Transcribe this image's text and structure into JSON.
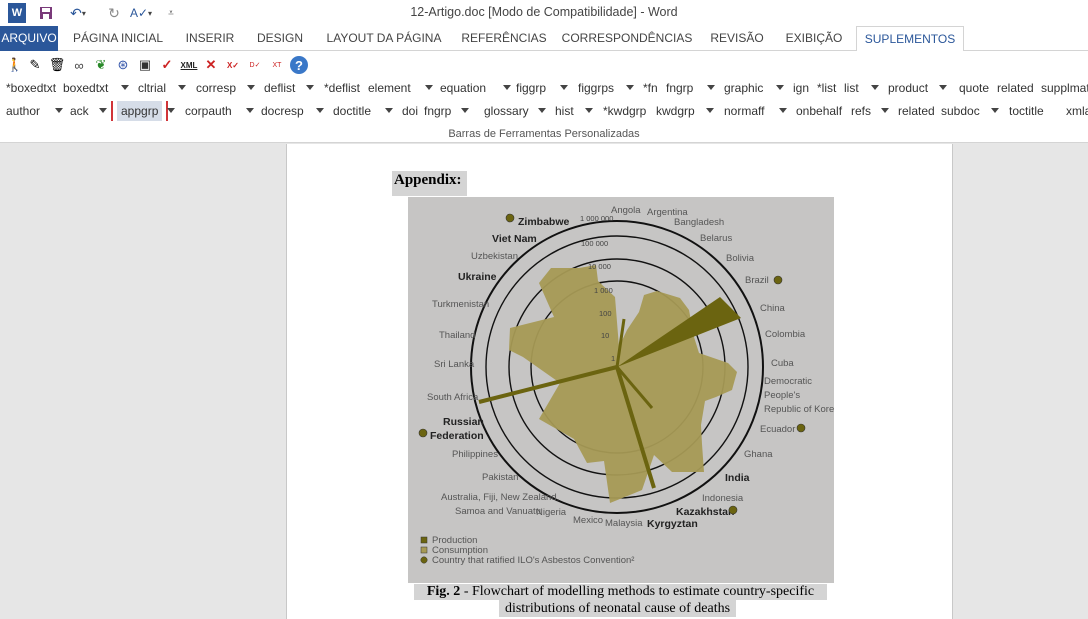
{
  "window": {
    "title": "12-Artigo.doc [Modo de Compatibilidade] - Word"
  },
  "quick_access": {
    "icons": [
      "word-icon",
      "save-icon",
      "undo-icon",
      "redo-icon",
      "spelling-icon",
      "customize-icon"
    ]
  },
  "tabs": [
    {
      "label": "ARQUIVO"
    },
    {
      "label": "PÁGINA INICIAL"
    },
    {
      "label": "INSERIR"
    },
    {
      "label": "DESIGN"
    },
    {
      "label": "LAYOUT DA PÁGINA"
    },
    {
      "label": "REFERÊNCIAS"
    },
    {
      "label": "CORRESPONDÊNCIAS"
    },
    {
      "label": "REVISÃO"
    },
    {
      "label": "EXIBIÇÃO"
    },
    {
      "label": "SUPLEMENTOS"
    }
  ],
  "ribbon": {
    "tool_icons": [
      "person-icon",
      "pen-icon",
      "trash-icon",
      "link-icon",
      "tree-icon",
      "globe-icon",
      "save-disk-icon",
      "check-icon",
      "xml-icon",
      "delete-icon",
      "xml-validate-icon",
      "data-icon",
      "xml-text-icon",
      "help-icon"
    ],
    "row1": [
      "*boxedtxt",
      "boxedtxt",
      "cltrial",
      "corresp",
      "deflist",
      "*deflist",
      "element",
      "equation",
      "figgrp",
      "figgrps",
      "*fn",
      "fngrp",
      "graphic",
      "ign",
      "*list",
      "list",
      "product",
      "quote",
      "related",
      "supplmat"
    ],
    "row2": [
      "author",
      "ack",
      "appgrp",
      "corpauth",
      "docresp",
      "doctitle",
      "doi",
      "fngrp",
      "glossary",
      "hist",
      "*kwdgrp",
      "kwdgrp",
      "normaff",
      "onbehalf",
      "refs",
      "related",
      "subdoc",
      "toctitle",
      "xmlabstr"
    ],
    "group_label": "Barras de Ferramentas Personalizadas",
    "highlight_color": "#d13438"
  },
  "document": {
    "heading": "Appendix:",
    "caption_bold": "Fig. 2",
    "caption_rest": " - Flowchart of modelling methods to estimate country-specific",
    "caption_line2": "distributions of neonatal cause of deaths"
  },
  "figure": {
    "ring_labels": [
      "1",
      "10",
      "100",
      "1 000",
      "10 000",
      "100 000",
      "1 000 000"
    ],
    "countries": [
      {
        "name": "Angola",
        "bold": false
      },
      {
        "name": "Argentina",
        "bold": false
      },
      {
        "name": "Bangladesh",
        "bold": false
      },
      {
        "name": "Belarus",
        "bold": false
      },
      {
        "name": "Bolivia",
        "bold": false
      },
      {
        "name": "Brazil",
        "bold": false
      },
      {
        "name": "China",
        "bold": false
      },
      {
        "name": "Colombia",
        "bold": false
      },
      {
        "name": "Cuba",
        "bold": false
      },
      {
        "name": "Democratic",
        "bold": false
      },
      {
        "name": "People's",
        "bold": false
      },
      {
        "name": "Republic of Korea",
        "bold": false
      },
      {
        "name": "Ecuador",
        "bold": false
      },
      {
        "name": "Ghana",
        "bold": false
      },
      {
        "name": "India",
        "bold": true
      },
      {
        "name": "Indonesia",
        "bold": false
      },
      {
        "name": "Kazakhstan",
        "bold": true
      },
      {
        "name": "Kyrgyztan",
        "bold": true
      },
      {
        "name": "Malaysia",
        "bold": false
      },
      {
        "name": "Mexico",
        "bold": false
      },
      {
        "name": "Nigeria",
        "bold": false
      },
      {
        "name": "Australia, Fiji, New Zealand,",
        "bold": false
      },
      {
        "name": "Samoa and Vanuatu",
        "bold": false
      },
      {
        "name": "Pakistan",
        "bold": false
      },
      {
        "name": "Philippines",
        "bold": false
      },
      {
        "name": "Russian",
        "bold": true
      },
      {
        "name": "Federation",
        "bold": true
      },
      {
        "name": "South Africa",
        "bold": false
      },
      {
        "name": "Sri Lanka",
        "bold": false
      },
      {
        "name": "Thailand",
        "bold": false
      },
      {
        "name": "Turkmenistan",
        "bold": false
      },
      {
        "name": "Ukraine",
        "bold": true
      },
      {
        "name": "Uzbekistan",
        "bold": false
      },
      {
        "name": "Viet Nam",
        "bold": true
      },
      {
        "name": "Zimbabwe",
        "bold": true
      }
    ],
    "legend": [
      {
        "label": "Production",
        "color": "#6b6410"
      },
      {
        "label": "Consumption",
        "color": "#a79a55"
      },
      {
        "label": "Country that ratified ILO's Asbestos Convention²",
        "color": "#6b6410"
      }
    ],
    "colors": {
      "production": "#6b6410",
      "consumption": "#a79a55",
      "background": "#c6c5c4"
    }
  }
}
